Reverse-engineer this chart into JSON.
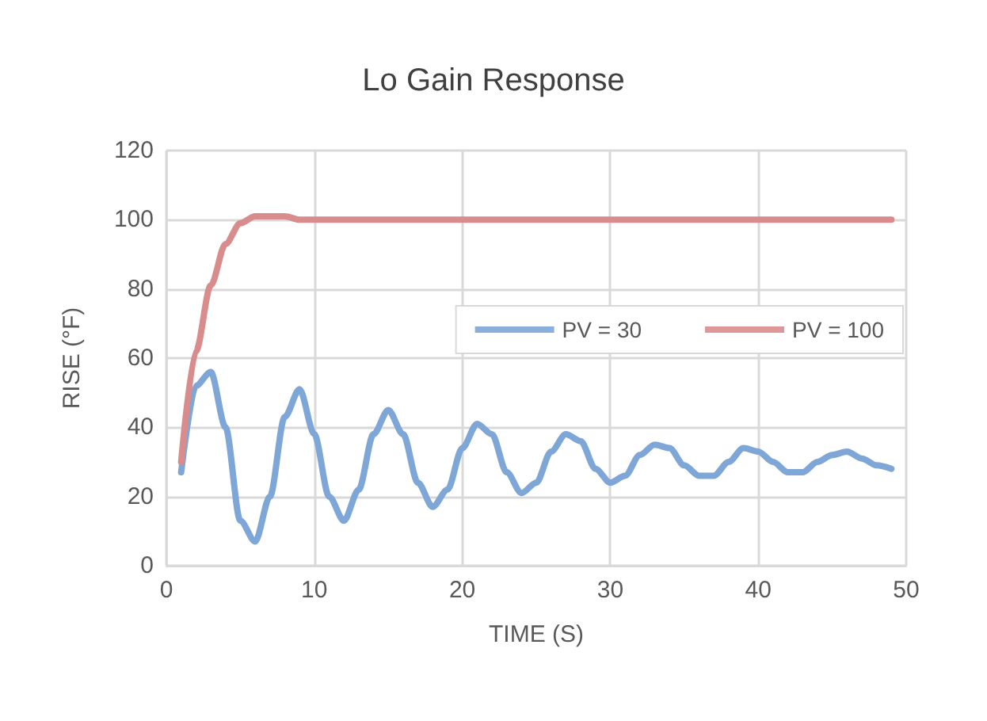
{
  "chart_data": {
    "type": "line",
    "title": "Lo Gain Response",
    "xlabel": "TIME (S)",
    "ylabel": "RISE (°F)",
    "x": [
      1,
      2,
      3,
      4,
      5,
      6,
      7,
      8,
      9,
      10,
      11,
      12,
      13,
      14,
      15,
      16,
      17,
      18,
      19,
      20,
      21,
      22,
      23,
      24,
      25,
      26,
      27,
      28,
      29,
      30,
      31,
      32,
      33,
      34,
      35,
      36,
      37,
      38,
      39,
      40,
      41,
      42,
      43,
      44,
      45,
      46,
      47,
      48,
      49
    ],
    "series": [
      {
        "name": "PV = 30",
        "color": "#7ea6d6",
        "values": [
          27,
          52,
          56,
          40,
          13,
          7,
          20,
          43,
          51,
          38,
          20,
          13,
          22,
          38,
          45,
          38,
          24,
          17,
          22,
          34,
          41,
          38,
          27,
          21,
          24,
          33,
          38,
          36,
          28,
          24,
          26,
          32,
          35,
          34,
          29,
          26,
          26,
          30,
          34,
          33,
          30,
          27,
          27,
          30,
          32,
          33,
          31,
          29,
          28
        ]
      },
      {
        "name": "PV = 100",
        "color": "#d98c8c",
        "values": [
          30,
          62,
          81,
          93,
          99,
          101,
          101,
          101,
          100,
          100,
          100,
          100,
          100,
          100,
          100,
          100,
          100,
          100,
          100,
          100,
          100,
          100,
          100,
          100,
          100,
          100,
          100,
          100,
          100,
          100,
          100,
          100,
          100,
          100,
          100,
          100,
          100,
          100,
          100,
          100,
          100,
          100,
          100,
          100,
          100,
          100,
          100,
          100,
          100
        ]
      }
    ],
    "xlim": [
      0,
      50
    ],
    "xticks": [
      0,
      10,
      20,
      30,
      40,
      50
    ],
    "ylim": [
      0,
      120
    ],
    "yticks": [
      0,
      20,
      40,
      60,
      80,
      100,
      120
    ],
    "grid": true,
    "legend": "right",
    "marker": "circle",
    "line_style": "solid"
  }
}
